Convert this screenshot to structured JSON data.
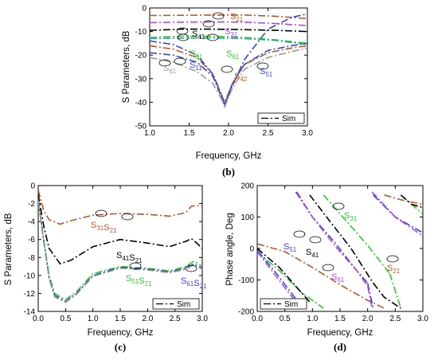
{
  "chart_data": [
    {
      "type": "line",
      "caption": "(b)",
      "xlabel": "Frequency, GHz",
      "ylabel": "S Parameters, dB",
      "xlim": [
        1.0,
        3.0
      ],
      "ylim": [
        -50,
        0
      ],
      "xticks": [
        "1.0",
        "1.5",
        "2.0",
        "2.5",
        "3.0"
      ],
      "yticks": [
        "0",
        "-10",
        "-20",
        "-30",
        "-40",
        "-50"
      ],
      "grid": false,
      "legend": {
        "label": "Sim",
        "position": "bottom-right"
      },
      "series": [
        {
          "name": "S21",
          "color": "#b5562b",
          "x": [
            1.0,
            1.4,
            1.8,
            2.2,
            2.6,
            3.0
          ],
          "y": [
            -3.2,
            -3.1,
            -3.0,
            -3.0,
            -3.5,
            -4.5
          ]
        },
        {
          "name": "S31",
          "color": "#b246e6",
          "x": [
            1.0,
            1.4,
            1.8,
            2.2,
            2.6,
            3.0
          ],
          "y": [
            -6.2,
            -6.0,
            -5.9,
            -6.0,
            -6.6,
            -7.5
          ]
        },
        {
          "name": "S41",
          "color": "#000000",
          "x": [
            1.0,
            1.4,
            1.8,
            2.2,
            2.6,
            3.0
          ],
          "y": [
            -9.5,
            -9.0,
            -9.0,
            -9.2,
            -9.5,
            -10.0
          ]
        },
        {
          "name": "S51",
          "color": "#2ec62e",
          "x": [
            1.0,
            1.4,
            1.8,
            2.2,
            2.6,
            3.0
          ],
          "y": [
            -12.5,
            -12.0,
            -12.0,
            -12.5,
            -13.5,
            -15.0
          ]
        },
        {
          "name": "S61",
          "color": "#3da0a0",
          "x": [
            1.0,
            1.4,
            1.8,
            2.2,
            2.6,
            3.0
          ],
          "y": [
            -13.0,
            -12.8,
            -12.7,
            -13.0,
            -13.8,
            -15.5
          ]
        },
        {
          "name": "S11",
          "color": "#3646c8",
          "x": [
            1.0,
            1.3,
            1.6,
            1.8,
            1.9,
            1.95,
            2.05,
            2.2,
            2.5,
            2.8,
            3.0
          ],
          "y": [
            -19.0,
            -20.0,
            -23.0,
            -29.0,
            -37.0,
            -41.0,
            -33.0,
            -22.0,
            -9.0,
            -4.0,
            -2.5
          ]
        },
        {
          "name": "S42",
          "color": "#b5562b",
          "x": [
            1.0,
            1.3,
            1.6,
            1.8,
            1.9,
            1.95,
            2.05,
            2.2,
            2.5,
            2.8,
            3.0
          ],
          "y": [
            -16.0,
            -17.5,
            -21.0,
            -28.0,
            -36.0,
            -40.0,
            -32.0,
            -24.0,
            -19.0,
            -17.0,
            -16.0
          ]
        },
        {
          "name": "S51b",
          "color": "#3646c8",
          "x": [
            1.0,
            1.3,
            1.6,
            1.8,
            1.9,
            1.95,
            2.05,
            2.2,
            2.5,
            2.8,
            3.0
          ],
          "y": [
            -14.0,
            -15.5,
            -20.0,
            -28.0,
            -36.0,
            -41.0,
            -32.0,
            -24.0,
            -18.0,
            -16.0,
            -15.0
          ]
        },
        {
          "name": "S61b",
          "color": "#999999",
          "x": [
            1.0,
            1.3,
            1.6,
            1.8,
            1.9,
            1.95,
            2.05,
            2.2,
            2.5,
            2.8,
            3.0
          ],
          "y": [
            -21.0,
            -23.0,
            -27.0,
            -32.0,
            -38.0,
            -42.0,
            -34.0,
            -26.0,
            -21.0,
            -18.5,
            -17.0
          ]
        }
      ],
      "annotations": [
        {
          "base": "S",
          "sub": "21",
          "color": "#b5562b"
        },
        {
          "base": "S",
          "sub": "31",
          "color": "#b246e6"
        },
        {
          "base": "S",
          "sub": "41",
          "color": "#000000"
        },
        {
          "base": "S",
          "sub": "51",
          "color": "#2ec62e"
        },
        {
          "base": "S",
          "sub": "61",
          "color": "#2ec62e"
        },
        {
          "base": "S",
          "sub": "11",
          "color": "#3646c8"
        },
        {
          "base": "S",
          "sub": "61",
          "color": "#999999"
        },
        {
          "base": "S",
          "sub": "42",
          "color": "#b5562b"
        },
        {
          "base": "S",
          "sub": "51",
          "color": "#3646c8"
        }
      ]
    },
    {
      "type": "line",
      "caption": "(c)",
      "xlabel": "Frequency, GHz",
      "ylabel": "S Parameters, dB",
      "xlim": [
        0.0,
        3.0
      ],
      "ylim": [
        -14,
        0
      ],
      "xticks": [
        "0.0",
        "0.5",
        "1.0",
        "1.5",
        "2.0",
        "2.5",
        "3.0"
      ],
      "yticks": [
        "0",
        "-2",
        "-4",
        "-6",
        "-8",
        "-10",
        "-12",
        "-14"
      ],
      "grid": false,
      "legend": {
        "label": "Sim",
        "position": "bottom-right"
      },
      "series": [
        {
          "name": "S31S21",
          "color": "#b5562b",
          "x": [
            0.0,
            0.1,
            0.2,
            0.4,
            0.6,
            1.0,
            1.5,
            2.0,
            2.4,
            2.7,
            2.8,
            2.9,
            3.0
          ],
          "y": [
            -0.5,
            -2.8,
            -3.8,
            -4.3,
            -3.9,
            -3.3,
            -3.1,
            -3.2,
            -3.4,
            -3.0,
            -2.3,
            -2.2,
            -2.3
          ]
        },
        {
          "name": "S41S21",
          "color": "#000000",
          "x": [
            0.0,
            0.1,
            0.2,
            0.4,
            0.6,
            1.0,
            1.5,
            2.0,
            2.4,
            2.7,
            2.8,
            2.9,
            3.0
          ],
          "y": [
            -1.0,
            -4.5,
            -7.0,
            -8.7,
            -8.3,
            -6.8,
            -6.0,
            -6.4,
            -6.8,
            -6.2,
            -5.9,
            -6.4,
            -7.0
          ]
        },
        {
          "name": "S51S21",
          "color": "#2ec62e",
          "x": [
            0.0,
            0.1,
            0.2,
            0.3,
            0.5,
            0.7,
            1.0,
            1.5,
            2.0,
            2.4,
            2.7,
            2.85,
            3.0
          ],
          "y": [
            -1.5,
            -6.0,
            -10.0,
            -12.0,
            -12.7,
            -11.8,
            -9.8,
            -9.0,
            -9.2,
            -9.5,
            -9.0,
            -8.4,
            -9.0
          ]
        },
        {
          "name": "S61S21",
          "color": "#3646c8",
          "x": [
            0.0,
            0.1,
            0.2,
            0.3,
            0.5,
            0.7,
            1.0,
            1.5,
            2.0,
            2.4,
            2.7,
            2.85,
            3.0
          ],
          "y": [
            -1.6,
            -6.2,
            -10.3,
            -12.2,
            -12.9,
            -12.0,
            -10.0,
            -9.1,
            -9.3,
            -9.6,
            -9.2,
            -8.7,
            -9.2
          ]
        },
        {
          "name": "S61S21b",
          "color": "#999999",
          "x": [
            0.0,
            0.1,
            0.2,
            0.3,
            0.5,
            0.7,
            1.0,
            1.5,
            2.0,
            2.4,
            2.7,
            2.85,
            3.0
          ],
          "y": [
            -1.7,
            -6.3,
            -10.4,
            -12.4,
            -13.0,
            -12.1,
            -10.1,
            -9.2,
            -9.4,
            -9.7,
            -9.3,
            -8.8,
            -9.3
          ]
        }
      ],
      "annotations": [
        {
          "parts": [
            [
              "S",
              "31"
            ],
            [
              "S",
              "21"
            ]
          ],
          "color": "#b5562b"
        },
        {
          "parts": [
            [
              "S",
              "41"
            ],
            [
              "S",
              "21"
            ]
          ],
          "color": "#000000"
        },
        {
          "parts": [
            [
              "S",
              "51"
            ],
            [
              "S",
              "21"
            ]
          ],
          "color": "#2ec62e"
        },
        {
          "parts": [
            [
              "S",
              "61"
            ],
            [
              "S",
              "21"
            ]
          ],
          "color": "#3646c8"
        }
      ]
    },
    {
      "type": "line",
      "caption": "(d)",
      "xlabel": "Frequency, GHz",
      "ylabel": "Phase angle,  Deg",
      "xlim": [
        0.0,
        3.0
      ],
      "ylim": [
        -200,
        200
      ],
      "xticks": [
        "0.0",
        "0.5",
        "1.0",
        "1.5",
        "2.0",
        "2.5",
        "3.0"
      ],
      "yticks": [
        "200",
        "100",
        "0",
        "-100",
        "-200"
      ],
      "grid": false,
      "legend": {
        "label": "Sim",
        "position": "bottom-left"
      },
      "series": [
        {
          "name": "S21",
          "color": "#b5562b",
          "segments": [
            {
              "x": [
                0.0,
                0.5,
                1.0,
                1.5,
                2.0,
                2.3
              ],
              "y": [
                15,
                -10,
                -60,
                -115,
                -165,
                -190
              ]
            },
            {
              "x": [
                2.3,
                2.6,
                3.0
              ],
              "y": [
                170,
                155,
                140
              ]
            }
          ]
        },
        {
          "name": "S31",
          "color": "#2ec62e",
          "segments": [
            {
              "x": [
                0.0,
                0.4,
                0.8,
                1.2
              ],
              "y": [
                -10,
                -70,
                -140,
                -190
              ]
            },
            {
              "x": [
                1.2,
                1.6,
                2.0,
                2.4
              ],
              "y": [
                170,
                90,
                10,
                -80
              ]
            },
            {
              "x": [
                2.4,
                2.6
              ],
              "y": [
                -80,
                -190
              ]
            },
            {
              "x": [
                2.6,
                2.8,
                3.0
              ],
              "y": [
                170,
                140,
                110
              ]
            }
          ]
        },
        {
          "name": "S41",
          "color": "#000000",
          "segments": [
            {
              "x": [
                0.0,
                0.4,
                0.75,
                0.95
              ],
              "y": [
                0,
                -60,
                -130,
                -170
              ]
            },
            {
              "x": [
                0.95,
                1.3,
                1.7,
                2.1
              ],
              "y": [
                170,
                90,
                0,
                -110
              ]
            },
            {
              "x": [
                2.1,
                2.3,
                2.6
              ],
              "y": [
                -110,
                -155,
                -190
              ]
            },
            {
              "x": [
                2.6,
                2.8,
                3.0
              ],
              "y": [
                170,
                140,
                130
              ]
            }
          ]
        },
        {
          "name": "S51",
          "color": "#3646c8",
          "segments": [
            {
              "x": [
                0.0,
                0.35,
                0.7
              ],
              "y": [
                -5,
                -80,
                -160
              ]
            },
            {
              "x": [
                0.7,
                1.0,
                1.4,
                1.8,
                2.0
              ],
              "y": [
                180,
                100,
                20,
                -70,
                -110
              ]
            },
            {
              "x": [
                2.0,
                2.1
              ],
              "y": [
                -110,
                -190
              ]
            },
            {
              "x": [
                2.1,
                2.5,
                3.0
              ],
              "y": [
                170,
                100,
                50
              ]
            }
          ]
        },
        {
          "name": "S61",
          "color": "#b246e6",
          "segments": [
            {
              "x": [
                0.0,
                0.35,
                0.7
              ],
              "y": [
                -10,
                -90,
                -170
              ]
            },
            {
              "x": [
                0.72,
                1.0,
                1.4,
                1.8,
                2.0
              ],
              "y": [
                180,
                100,
                10,
                -70,
                -120
              ]
            },
            {
              "x": [
                2.0,
                2.08
              ],
              "y": [
                -120,
                -190
              ]
            },
            {
              "x": [
                2.08,
                2.5,
                3.0
              ],
              "y": [
                180,
                100,
                40
              ]
            }
          ]
        }
      ],
      "annotations": [
        {
          "base": "S",
          "sub": "31",
          "color": "#2ec62e"
        },
        {
          "base": "S",
          "sub": "51",
          "color": "#3646c8"
        },
        {
          "base": "S",
          "sub": "41",
          "color": "#000000"
        },
        {
          "base": "S",
          "sub": "61",
          "color": "#b246e6"
        },
        {
          "base": "S",
          "sub": "21",
          "color": "#b5562b"
        }
      ]
    }
  ]
}
